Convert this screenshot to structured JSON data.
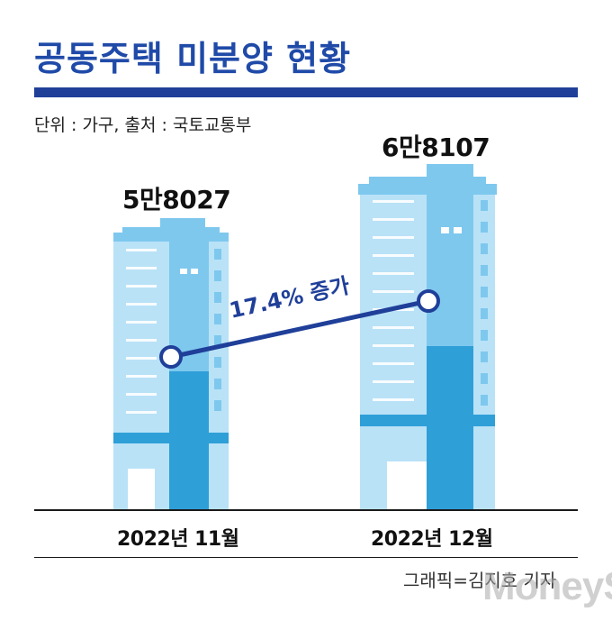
{
  "title": "공동주택 미분양 현황",
  "subtitle": "단위 : 가구, 출처 : 국토교통부",
  "credit": "그래픽=김지호 기자",
  "logo": "MoneyS",
  "chart_data": {
    "type": "line",
    "categories": [
      "2022년 11월",
      "2022년 12월"
    ],
    "values": [
      58027,
      68107
    ],
    "value_labels": [
      "5만8027",
      "6만8107"
    ],
    "annotation": "17.4% 증가",
    "colors": {
      "title": "#1f4aa8",
      "bar": "#1f3f99",
      "line": "#1f3f99",
      "building_dark": "#2f9fd8",
      "building_mid": "#7ec8ee",
      "building_light": "#b9e2f7"
    }
  }
}
